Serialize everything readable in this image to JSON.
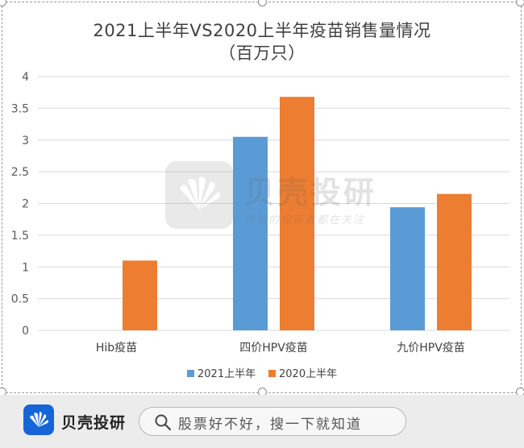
{
  "chart_data": {
    "type": "bar",
    "title": "2021上半年VS2020上半年疫苗销售量情况",
    "subtitle": "（百万只）",
    "categories": [
      "Hib疫苗",
      "四价HPV疫苗",
      "九价HPV疫苗"
    ],
    "series": [
      {
        "name": "2021上半年",
        "color": "#5b9bd5",
        "values": [
          0,
          3.05,
          1.94
        ]
      },
      {
        "name": "2020上半年",
        "color": "#ed7d31",
        "values": [
          1.1,
          3.68,
          2.15
        ]
      }
    ],
    "ylim": [
      0,
      4
    ],
    "yticks": [
      "0",
      "0.5",
      "1",
      "1.5",
      "2",
      "2.5",
      "3",
      "3.5",
      "4"
    ],
    "grid": true,
    "legend_position": "bottom"
  },
  "watermark": {
    "name": "贝壳投研",
    "slogan": "聪明的投资者都在关注"
  },
  "footer": {
    "brand": "贝壳投研",
    "search_text": "股票好不好，搜一下就知道",
    "brand_color": "#1565d8"
  }
}
